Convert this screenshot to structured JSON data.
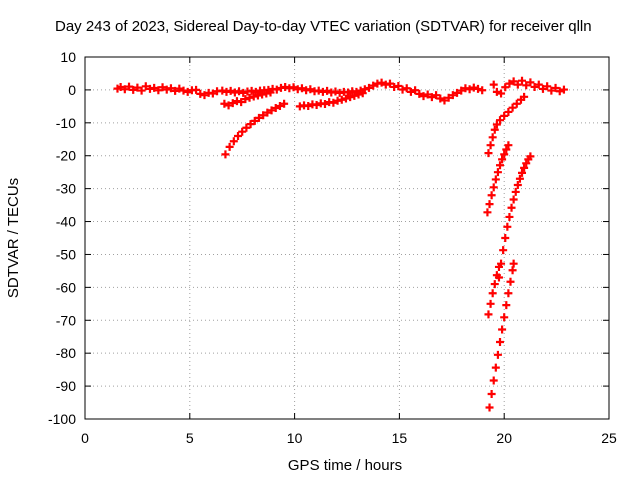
{
  "chart_data": {
    "type": "scatter",
    "title": "Day 243 of 2023, Sidereal Day-to-day VTEC variation (SDTVAR) for receiver qlln",
    "xlabel": "GPS time / hours",
    "ylabel": "SDTVAR / TECUs",
    "xlim": [
      0,
      25
    ],
    "ylim": [
      -100,
      10
    ],
    "xticks": [
      "0",
      "5",
      "10",
      "15",
      "20",
      "25"
    ],
    "yticks": [
      "10",
      "0",
      "-10",
      "-20",
      "-30",
      "-40",
      "-50",
      "-60",
      "-70",
      "-80",
      "-90",
      "-100"
    ],
    "grid": true,
    "legend": "none",
    "colors": {
      "series": "#ff0000",
      "grid": "#a0a0a0",
      "axes": "#000000"
    },
    "series": [
      {
        "marker": "plus",
        "points": [
          [
            1.55,
            0.4
          ],
          [
            1.7,
            0.9
          ],
          [
            1.9,
            0.2
          ],
          [
            2.1,
            1.0
          ],
          [
            2.3,
            0.0
          ],
          [
            2.5,
            0.7
          ],
          [
            2.7,
            -0.2
          ],
          [
            2.9,
            1.1
          ],
          [
            3.1,
            0.3
          ],
          [
            3.3,
            0.6
          ],
          [
            3.5,
            -0.1
          ],
          [
            3.7,
            0.8
          ],
          [
            3.9,
            0.1
          ],
          [
            4.1,
            0.5
          ],
          [
            4.3,
            -0.3
          ],
          [
            4.5,
            0.4
          ],
          [
            4.7,
            -0.2
          ],
          [
            4.9,
            -0.6
          ],
          [
            5.1,
            -0.1
          ],
          [
            5.3,
            0.0
          ],
          [
            5.5,
            -1.2
          ],
          [
            5.7,
            -1.6
          ],
          [
            5.9,
            -0.9
          ],
          [
            6.1,
            -1.1
          ],
          [
            6.3,
            -0.4
          ],
          [
            6.55,
            -0.2
          ],
          [
            6.75,
            -0.6
          ],
          [
            6.95,
            -0.3
          ],
          [
            7.15,
            -0.8
          ],
          [
            7.35,
            -0.4
          ],
          [
            7.55,
            -0.9
          ],
          [
            7.75,
            -0.5
          ],
          [
            7.95,
            -0.3
          ],
          [
            8.15,
            -0.6
          ],
          [
            8.35,
            -0.2
          ],
          [
            8.55,
            -0.1
          ],
          [
            8.75,
            0.0
          ],
          [
            8.95,
            0.3
          ],
          [
            9.15,
            0.1
          ],
          [
            9.35,
            0.6
          ],
          [
            9.55,
            0.9
          ],
          [
            9.75,
            0.5
          ],
          [
            9.95,
            0.8
          ],
          [
            10.15,
            0.2
          ],
          [
            10.35,
            0.5
          ],
          [
            10.55,
            -0.1
          ],
          [
            10.75,
            0.2
          ],
          [
            10.95,
            -0.4
          ],
          [
            11.15,
            -0.2
          ],
          [
            11.35,
            -0.6
          ],
          [
            11.55,
            -0.3
          ],
          [
            11.75,
            -0.8
          ],
          [
            11.95,
            -0.5
          ],
          [
            12.15,
            -0.9
          ],
          [
            12.35,
            -0.6
          ],
          [
            12.55,
            -0.8
          ],
          [
            12.75,
            -0.4
          ],
          [
            12.95,
            -0.6
          ],
          [
            13.15,
            -0.2
          ],
          [
            13.35,
            0.2
          ],
          [
            13.55,
            0.6
          ],
          [
            13.75,
            1.3
          ],
          [
            13.95,
            1.9
          ],
          [
            14.15,
            2.2
          ],
          [
            14.35,
            1.6
          ],
          [
            14.55,
            1.9
          ],
          [
            14.75,
            0.9
          ],
          [
            14.95,
            1.2
          ],
          [
            15.15,
            0.1
          ],
          [
            15.35,
            0.5
          ],
          [
            15.55,
            -0.6
          ],
          [
            15.75,
            -0.1
          ],
          [
            15.95,
            -1.2
          ],
          [
            16.15,
            -1.9
          ],
          [
            16.35,
            -1.4
          ],
          [
            16.55,
            -2.2
          ],
          [
            16.75,
            -1.6
          ],
          [
            16.95,
            -2.6
          ],
          [
            17.15,
            -3.2
          ],
          [
            17.35,
            -2.4
          ],
          [
            17.55,
            -1.6
          ],
          [
            17.75,
            -0.9
          ],
          [
            17.95,
            -0.2
          ],
          [
            18.15,
            0.5
          ],
          [
            18.35,
            0.2
          ],
          [
            18.55,
            0.7
          ],
          [
            18.75,
            0.3
          ],
          [
            18.95,
            -0.1
          ],
          [
            19.5,
            1.6
          ],
          [
            19.65,
            -0.6
          ],
          [
            19.85,
            -1.1
          ],
          [
            20.05,
            0.8
          ],
          [
            20.25,
            1.9
          ],
          [
            20.45,
            2.6
          ],
          [
            20.65,
            1.6
          ],
          [
            20.85,
            2.8
          ],
          [
            21.05,
            1.4
          ],
          [
            21.25,
            2.3
          ],
          [
            21.45,
            0.9
          ],
          [
            21.65,
            1.6
          ],
          [
            21.85,
            0.3
          ],
          [
            22.05,
            1.1
          ],
          [
            22.25,
            -0.2
          ],
          [
            22.45,
            0.6
          ],
          [
            22.65,
            -0.4
          ],
          [
            22.85,
            0.1
          ],
          [
            6.65,
            -4.2
          ],
          [
            6.85,
            -4.7
          ],
          [
            7.05,
            -4.0
          ],
          [
            7.25,
            -3.4
          ],
          [
            7.45,
            -3.7
          ],
          [
            7.65,
            -2.8
          ],
          [
            7.85,
            -2.4
          ],
          [
            8.05,
            -2.0
          ],
          [
            8.25,
            -1.7
          ],
          [
            8.45,
            -1.4
          ],
          [
            8.65,
            -1.1
          ],
          [
            8.85,
            -0.8
          ],
          [
            10.25,
            -5.0
          ],
          [
            10.45,
            -4.7
          ],
          [
            10.65,
            -4.9
          ],
          [
            10.85,
            -4.4
          ],
          [
            11.05,
            -4.6
          ],
          [
            11.25,
            -4.1
          ],
          [
            11.45,
            -4.3
          ],
          [
            11.65,
            -3.7
          ],
          [
            11.85,
            -3.9
          ],
          [
            12.05,
            -3.3
          ],
          [
            12.25,
            -3.0
          ],
          [
            12.45,
            -2.6
          ],
          [
            12.65,
            -2.2
          ],
          [
            12.85,
            -1.8
          ],
          [
            13.05,
            -1.4
          ],
          [
            13.25,
            -1.0
          ],
          [
            6.7,
            -19.6
          ],
          [
            6.9,
            -17.3
          ],
          [
            7.1,
            -15.6
          ],
          [
            7.3,
            -14.0
          ],
          [
            7.5,
            -12.7
          ],
          [
            7.7,
            -11.5
          ],
          [
            7.9,
            -10.4
          ],
          [
            8.1,
            -9.4
          ],
          [
            8.3,
            -8.5
          ],
          [
            8.5,
            -7.7
          ],
          [
            8.7,
            -6.9
          ],
          [
            8.9,
            -6.2
          ],
          [
            9.1,
            -5.5
          ],
          [
            9.3,
            -4.9
          ],
          [
            9.5,
            -4.2
          ],
          [
            19.25,
            -19.2
          ],
          [
            19.35,
            -16.8
          ],
          [
            19.45,
            -14.4
          ],
          [
            19.55,
            -12.1
          ],
          [
            19.65,
            -10.5
          ],
          [
            19.8,
            -9.2
          ],
          [
            20.0,
            -7.9
          ],
          [
            20.2,
            -6.7
          ],
          [
            20.4,
            -5.4
          ],
          [
            20.6,
            -4.2
          ],
          [
            20.8,
            -3.0
          ],
          [
            20.95,
            -2.1
          ],
          [
            19.2,
            -37.2
          ],
          [
            19.3,
            -34.7
          ],
          [
            19.4,
            -32.0
          ],
          [
            19.5,
            -29.6
          ],
          [
            19.6,
            -27.2
          ],
          [
            19.7,
            -25.0
          ],
          [
            19.8,
            -22.9
          ],
          [
            19.9,
            -21.1
          ],
          [
            20.0,
            -19.6
          ],
          [
            20.1,
            -18.1
          ],
          [
            20.2,
            -16.8
          ],
          [
            19.75,
            -57.0
          ],
          [
            19.85,
            -52.8
          ],
          [
            19.95,
            -48.7
          ],
          [
            20.05,
            -45.0
          ],
          [
            20.15,
            -41.6
          ],
          [
            20.25,
            -38.6
          ],
          [
            20.35,
            -35.8
          ],
          [
            20.45,
            -33.3
          ],
          [
            20.55,
            -31.0
          ],
          [
            20.65,
            -28.9
          ],
          [
            20.75,
            -27.0
          ],
          [
            20.85,
            -25.2
          ],
          [
            20.95,
            -23.7
          ],
          [
            21.05,
            -22.3
          ],
          [
            21.15,
            -21.1
          ],
          [
            21.25,
            -20.2
          ],
          [
            19.25,
            -68.2
          ],
          [
            19.35,
            -65.0
          ],
          [
            19.45,
            -61.8
          ],
          [
            19.55,
            -59.0
          ],
          [
            19.65,
            -56.3
          ],
          [
            19.75,
            -53.8
          ],
          [
            19.3,
            -96.5
          ],
          [
            19.4,
            -92.4
          ],
          [
            19.5,
            -88.3
          ],
          [
            19.6,
            -84.4
          ],
          [
            19.7,
            -80.5
          ],
          [
            19.8,
            -76.6
          ],
          [
            19.9,
            -72.8
          ],
          [
            20.0,
            -69.1
          ],
          [
            20.1,
            -65.4
          ],
          [
            20.2,
            -61.8
          ],
          [
            20.3,
            -58.3
          ],
          [
            20.4,
            -54.8
          ],
          [
            20.45,
            -52.8
          ]
        ]
      }
    ]
  }
}
